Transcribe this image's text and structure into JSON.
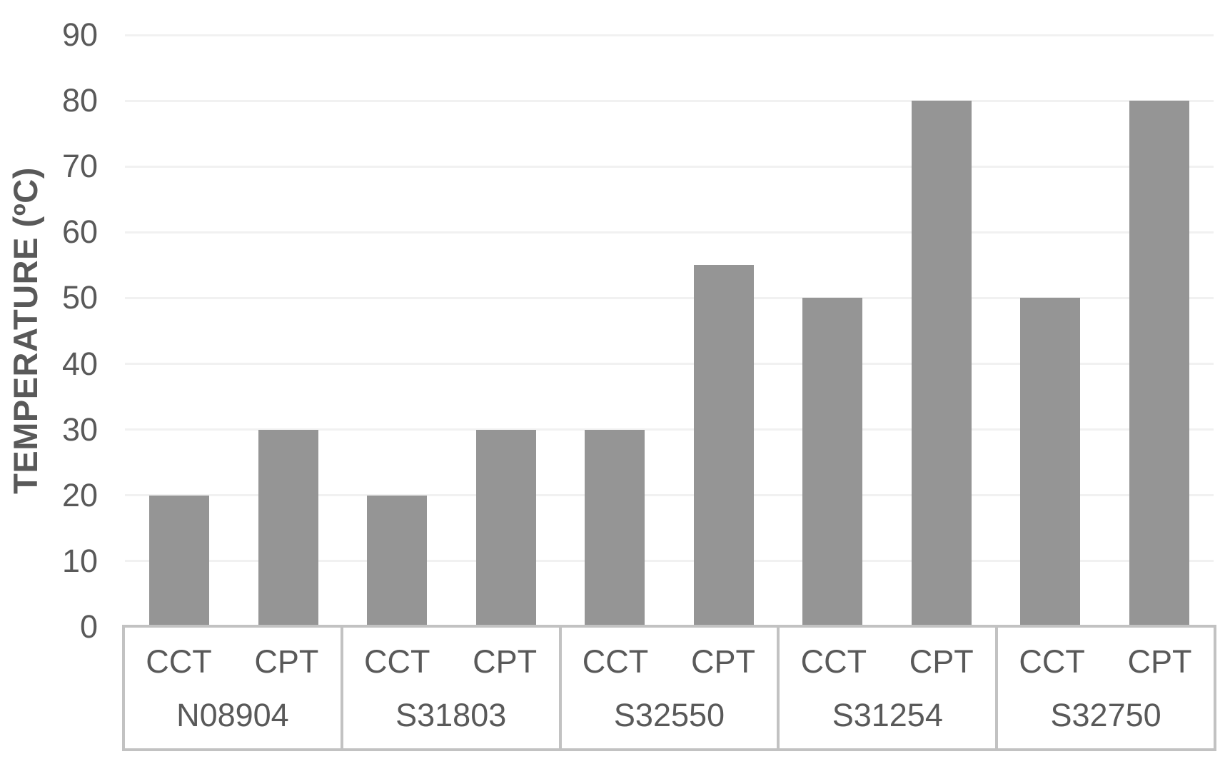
{
  "chart_data": {
    "type": "bar",
    "title": "",
    "xlabel": "",
    "ylabel": "TEMPERATURE (ºC)",
    "categories": [
      "N08904",
      "S31803",
      "S32550",
      "S31254",
      "S32750"
    ],
    "sub_categories": [
      "CCT",
      "CPT"
    ],
    "series": [
      {
        "name": "CCT",
        "values": [
          20,
          20,
          30,
          50,
          50
        ]
      },
      {
        "name": "CPT",
        "values": [
          30,
          30,
          55,
          80,
          80
        ]
      }
    ],
    "ylim": [
      0,
      90
    ],
    "yticks": [
      0,
      10,
      20,
      30,
      40,
      50,
      60,
      70,
      80,
      90
    ],
    "grid": "horizontal-only",
    "legend_position": "none",
    "bar_color": "#959595",
    "gridline_color": "#f1f1f1",
    "axis_border_color": "#c2c2c2",
    "text_color": "#595959",
    "background_color": "#ffffff"
  }
}
